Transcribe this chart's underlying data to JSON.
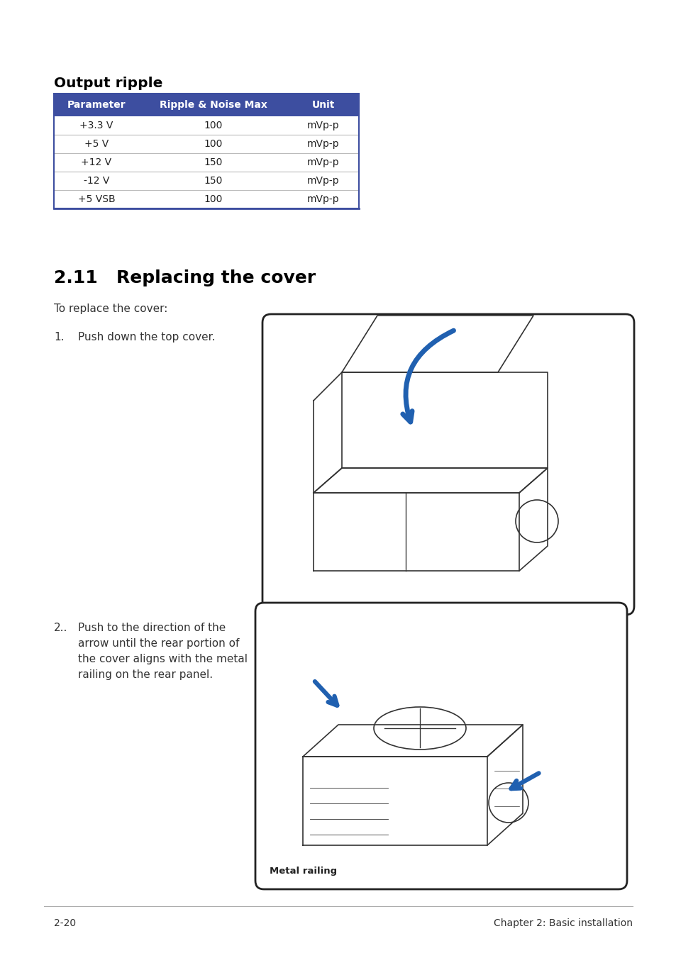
{
  "bg_color": "#ffffff",
  "section_title": "Output ripple",
  "table_header": [
    "Parameter",
    "Ripple & Noise Max",
    "Unit"
  ],
  "table_rows": [
    [
      "+3.3 V",
      "100",
      "mVp-p"
    ],
    [
      "+5 V",
      "100",
      "mVp-p"
    ],
    [
      "+12 V",
      "150",
      "mVp-p"
    ],
    [
      "-12 V",
      "150",
      "mVp-p"
    ],
    [
      "+5 VSB",
      "100",
      "mVp-p"
    ]
  ],
  "table_header_bg": "#3d4ea0",
  "table_header_color": "#ffffff",
  "table_border_color": "#3d4ea0",
  "table_divider_color": "#bbbbbb",
  "section2_title": "2.11   Replacing the cover",
  "intro_text": "To replace the cover:",
  "step1_num": "1.",
  "step1_text": "Push down the top cover.",
  "step2_num": "2..",
  "step2_lines": [
    "Push to the direction of the",
    "arrow until the rear portion of",
    "the cover aligns with the metal",
    "railing on the rear panel."
  ],
  "metal_railing_label": "Metal railing",
  "footer_left": "2-20",
  "footer_right": "Chapter 2: Basic installation",
  "footer_line_color": "#aaaaaa",
  "arrow_color": "#2060b0",
  "line_color": "#333333"
}
